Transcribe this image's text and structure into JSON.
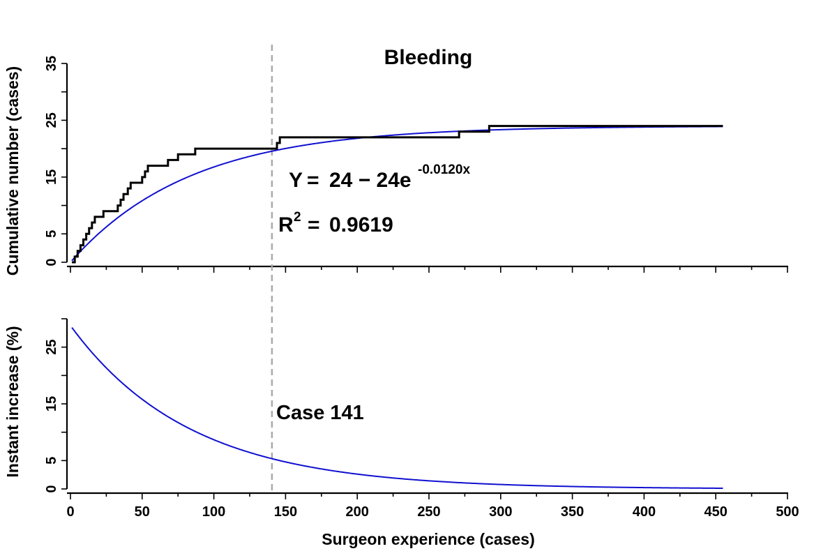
{
  "chart_data": [
    {
      "panel": "top",
      "type": "line",
      "title": "Bleeding",
      "ylabel": "Cumulative number (cases)",
      "xlabel": "",
      "xlim": [
        0,
        500
      ],
      "ylim": [
        0,
        35
      ],
      "yticks": [
        0,
        5,
        15,
        25,
        35
      ],
      "grid": false,
      "colors": {
        "observed": "#000000",
        "fitted": "#1010d0",
        "cutoff": "#aaaaaa"
      },
      "annotations": {
        "equation_prefix": "Y",
        "equation_eq": "=",
        "equation_body": "24 − 24e",
        "equation_exp": "-0.0120x",
        "r2_prefix": "R",
        "r2_exp": "2",
        "r2_eq": "=",
        "r2_value": "0.9619"
      },
      "series": [
        {
          "style": "step",
          "x": [
            1,
            3,
            5,
            7,
            9,
            11,
            13,
            15,
            17,
            20,
            23,
            25,
            33,
            35,
            37,
            40,
            42,
            50,
            52,
            54,
            65,
            68,
            75,
            85,
            87,
            144,
            146,
            170,
            210,
            228,
            270,
            271,
            290,
            292,
            330,
            455
          ],
          "y": [
            0,
            1,
            2,
            3,
            4,
            5,
            6,
            7,
            8,
            8,
            9,
            9,
            10,
            11,
            12,
            13,
            14,
            15,
            16,
            17,
            17,
            18,
            19,
            19,
            20,
            21,
            22,
            22,
            22,
            22,
            22,
            23,
            23,
            24,
            24,
            24
          ]
        },
        {
          "style": "fit",
          "equation": {
            "a": 24,
            "b": 0.012
          },
          "x_range": [
            1,
            455
          ]
        }
      ]
    },
    {
      "panel": "bottom",
      "type": "line",
      "title": "",
      "ylabel": "Instant increase (%)",
      "xlabel": "Surgeon experience (cases)",
      "xlim": [
        0,
        500
      ],
      "ylim": [
        0,
        30
      ],
      "yticks": [
        0,
        5,
        15,
        25
      ],
      "xticks": [
        0,
        50,
        100,
        150,
        200,
        250,
        300,
        350,
        400,
        450,
        500
      ],
      "grid": false,
      "cutoff_x": 141,
      "cutoff_label": "Case 141",
      "series": [
        {
          "style": "fit",
          "equation": {
            "a": 28.8,
            "b": 0.012
          },
          "x_range": [
            1,
            455
          ]
        }
      ]
    }
  ]
}
